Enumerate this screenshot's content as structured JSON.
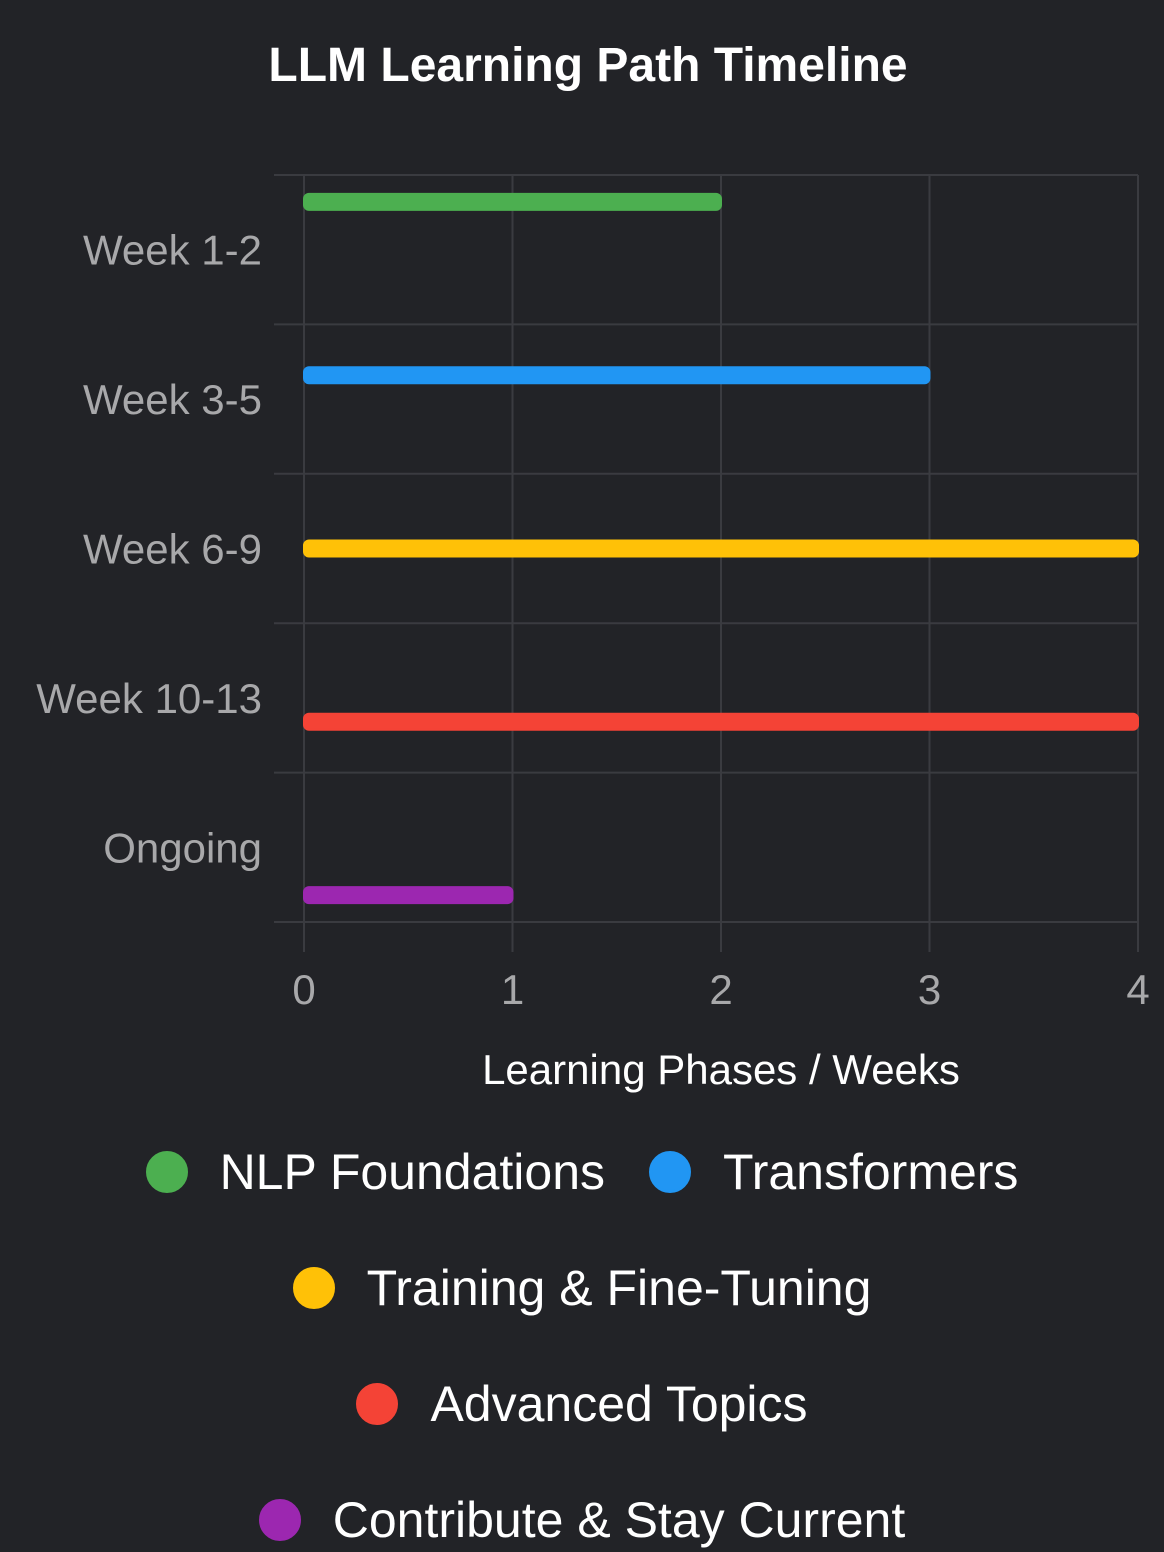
{
  "chart_data": {
    "type": "bar",
    "orientation": "horizontal",
    "title": "LLM Learning Path Timeline",
    "xlabel": "Learning Phases / Weeks",
    "ylabel": "",
    "xlim": [
      0,
      4
    ],
    "xticks": [
      "0",
      "1",
      "2",
      "3",
      "4"
    ],
    "categories": [
      "Week 1-2",
      "Week 3-5",
      "Week 6-9",
      "Week 10-13",
      "Ongoing"
    ],
    "grid": true,
    "legend_position": "bottom",
    "series": [
      {
        "name": "NLP Foundations",
        "color": "#4CAF50",
        "values": [
          2,
          null,
          null,
          null,
          null
        ]
      },
      {
        "name": "Transformers",
        "color": "#2196F3",
        "values": [
          null,
          3,
          null,
          null,
          null
        ]
      },
      {
        "name": "Training & Fine-Tuning",
        "color": "#FFC107",
        "values": [
          null,
          null,
          4,
          null,
          null
        ]
      },
      {
        "name": "Advanced Topics",
        "color": "#F44336",
        "values": [
          null,
          null,
          null,
          4,
          null
        ]
      },
      {
        "name": "Contribute & Stay Current",
        "color": "#9C27B0",
        "values": [
          null,
          null,
          null,
          null,
          1
        ]
      }
    ]
  }
}
